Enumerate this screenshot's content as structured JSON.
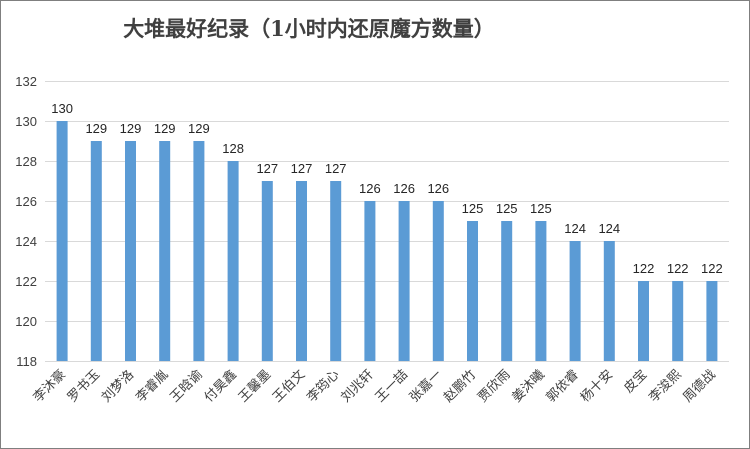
{
  "chart_data": {
    "type": "bar",
    "title": "大堆最好纪录（1小时内还原魔方数量）",
    "xlabel": "",
    "ylabel": "",
    "ylim": [
      118,
      132
    ],
    "yticks": [
      118,
      120,
      122,
      124,
      126,
      128,
      130,
      132
    ],
    "grid": true,
    "bar_color": "#5b9bd5",
    "grid_color": "#d9d9d9",
    "categories": [
      "李沐豪",
      "罗书玉",
      "刘梦洛",
      "李睿胤",
      "王晗谕",
      "付昊鑫",
      "王馨墨",
      "王伯文",
      "李筠心",
      "刘兆轩",
      "王一喆",
      "张嘉一",
      "赵鹏竹",
      "贾欣雨",
      "姜沐曦",
      "郭依睿",
      "杨十安",
      "皮宝",
      "李浚熙",
      "周德战"
    ],
    "values": [
      130,
      129,
      129,
      129,
      129,
      128,
      127,
      127,
      127,
      126,
      126,
      126,
      125,
      125,
      125,
      124,
      124,
      122,
      122,
      122
    ]
  }
}
